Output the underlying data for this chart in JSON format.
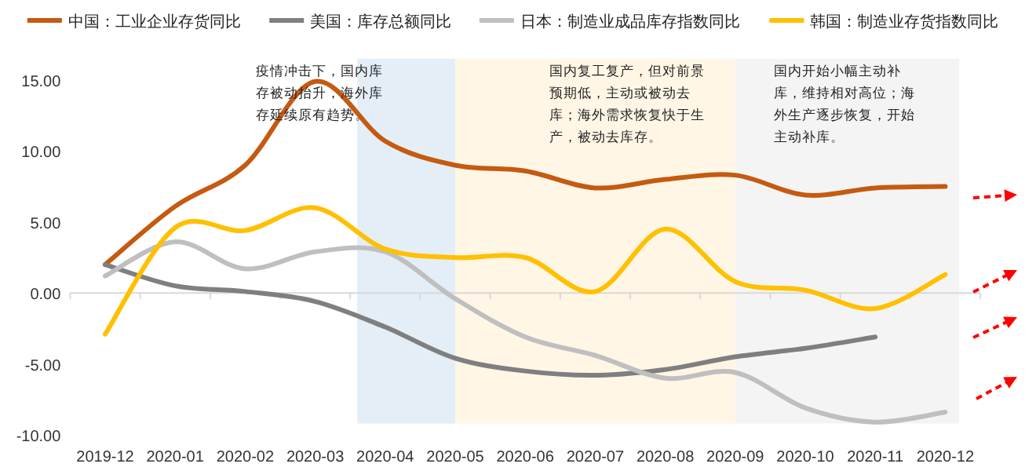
{
  "chart_data": {
    "type": "line",
    "categories": [
      "2019-12",
      "2020-01",
      "2020-02",
      "2020-03",
      "2020-04",
      "2020-05",
      "2020-06",
      "2020-07",
      "2020-08",
      "2020-09",
      "2020-10",
      "2020-11",
      "2020-12"
    ],
    "series": [
      {
        "name": "中国：工业企业存货同比",
        "color": "#c55a11",
        "values": [
          2.0,
          6.1,
          9.0,
          14.9,
          10.7,
          9.0,
          8.6,
          7.4,
          8.0,
          8.3,
          6.9,
          7.4,
          7.5
        ]
      },
      {
        "name": "美国：库存总额同比",
        "color": "#7f7f7f",
        "values": [
          2.0,
          0.5,
          0.1,
          -0.6,
          -2.4,
          -4.6,
          -5.5,
          -5.8,
          -5.4,
          -4.5,
          -3.9,
          -3.1,
          null
        ]
      },
      {
        "name": "日本：制造业成品库存指数同比",
        "color": "#bfbfbf",
        "values": [
          1.2,
          3.6,
          1.7,
          2.9,
          2.9,
          -0.4,
          -3.1,
          -4.4,
          -6.0,
          -5.6,
          -8.1,
          -9.1,
          -8.4
        ]
      },
      {
        "name": "韩国：制造业存货指数同比",
        "color": "#ffc000",
        "values": [
          -2.9,
          4.6,
          4.4,
          6.0,
          3.1,
          2.5,
          2.5,
          0.1,
          4.5,
          0.8,
          0.2,
          -1.1,
          1.3
        ]
      }
    ],
    "ylim": [
      -10,
      15
    ],
    "ref_lines": [
      {
        "axis": "y",
        "value": 0,
        "color": "#d9d9d9"
      }
    ],
    "yticks": [
      {
        "value": -10,
        "label": "-10.00"
      },
      {
        "value": -5,
        "label": "-5.00"
      },
      {
        "value": 0,
        "label": "0.00"
      },
      {
        "value": 5,
        "label": "5.00"
      },
      {
        "value": 10,
        "label": "10.00"
      },
      {
        "value": 15,
        "label": "15.00"
      }
    ],
    "bands": [
      {
        "axis": "x",
        "from": "2020-04",
        "to": "2020-05",
        "color": "#e4eef7"
      },
      {
        "axis": "x",
        "from": "2020-05",
        "to": "2020-09",
        "color": "#fff6e5"
      },
      {
        "axis": "x",
        "from": "2020-09",
        "to": "2020-12",
        "color": "#f4f4f4"
      }
    ],
    "annotations": [
      "疫情冲击下，国内库存被动抬升，海外库存延续原有趋势。",
      "国内复工复产，但对前景预期低，主动或被动去库；海外需求恢复快于生产，被动去库存。",
      "国内开始小幅主动补库，维持相对高位；海外生产逐步恢复，开始主动补库。"
    ],
    "legend": "top",
    "grid": false
  }
}
